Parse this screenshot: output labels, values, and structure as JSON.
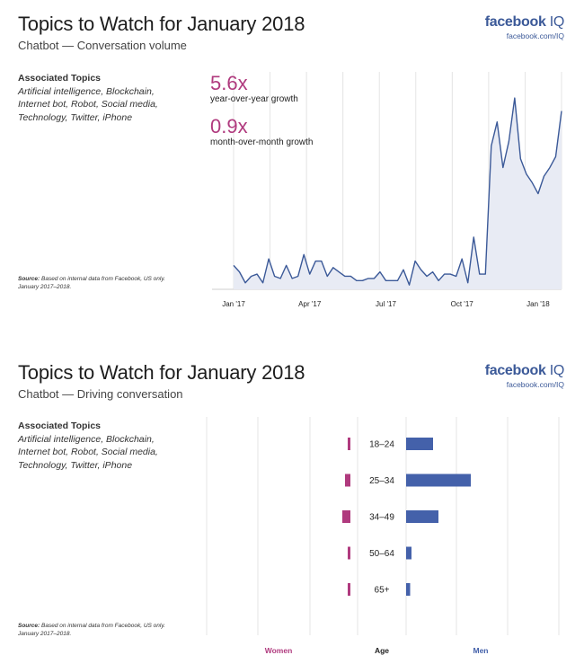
{
  "panels": [
    {
      "title": "Topics to Watch for January 2018",
      "subtitle": "Chatbot — Conversation volume",
      "brand": {
        "name": "facebook",
        "suffix": "IQ",
        "url": "facebook.com/IQ",
        "color": "#3b5998"
      },
      "associated": {
        "heading": "Associated Topics",
        "topics": "Artificial intelligence, Blockchain, Internet bot, Robot, Social media, Technology, Twitter, iPhone"
      },
      "source": {
        "label": "Source:",
        "text": "Based on internal data from Facebook, US only.",
        "period": "January 2017–2018."
      },
      "metrics": [
        {
          "value": "5.6x",
          "label": "year-over-year growth"
        },
        {
          "value": "0.9x",
          "label": "month-over-month growth"
        }
      ]
    },
    {
      "title": "Topics to Watch for January 2018",
      "subtitle": "Chatbot — Driving conversation",
      "brand": {
        "name": "facebook",
        "suffix": "IQ",
        "url": "facebook.com/IQ",
        "color": "#3b5998"
      },
      "associated": {
        "heading": "Associated Topics",
        "topics": "Artificial intelligence, Blockchain, Internet bot, Robot, Social media, Technology, Twitter, iPhone"
      },
      "source": {
        "label": "Source:",
        "text": "Based on internal data from Facebook, US only.",
        "period": "January 2017–2018."
      }
    }
  ],
  "chart_data": [
    {
      "type": "area",
      "title": "",
      "xlabel": "",
      "ylabel": "",
      "x_ticks": [
        "Jan '17",
        "Apr '17",
        "Jul '17",
        "Oct '17",
        "Jan '18"
      ],
      "x_tick_index": [
        0,
        13,
        26,
        39,
        52
      ],
      "ylim": [
        0,
        100
      ],
      "grid": "vertical",
      "line_color": "#3b5998",
      "fill_color": "#e8ebf4",
      "series": [
        {
          "values": [
            11,
            8,
            3,
            6,
            7,
            3,
            14,
            6,
            5,
            11,
            5,
            6,
            16,
            7,
            13,
            13,
            6,
            10,
            8,
            6,
            6,
            4,
            4,
            5,
            5,
            8,
            4,
            4,
            4,
            9,
            2,
            13,
            9,
            6,
            8,
            4,
            7,
            7,
            6,
            14,
            3,
            24,
            7,
            7,
            66,
            77,
            56,
            68,
            88,
            60,
            53,
            49,
            44,
            52,
            56,
            61,
            82
          ]
        }
      ]
    },
    {
      "type": "bar",
      "title": "",
      "orientation": "horizontal-diverging",
      "categories": [
        "18–24",
        "25–34",
        "34–49",
        "50–64",
        "65+"
      ],
      "axis_label": "Age",
      "series": [
        {
          "name": "Women",
          "color": "#b03a7e",
          "values": [
            1,
            2,
            3,
            1,
            1
          ]
        },
        {
          "name": "Men",
          "color": "#4461aa",
          "values": [
            10,
            24,
            12,
            2,
            1.5
          ]
        }
      ],
      "xlim": [
        0,
        60
      ],
      "grid": "vertical"
    }
  ]
}
